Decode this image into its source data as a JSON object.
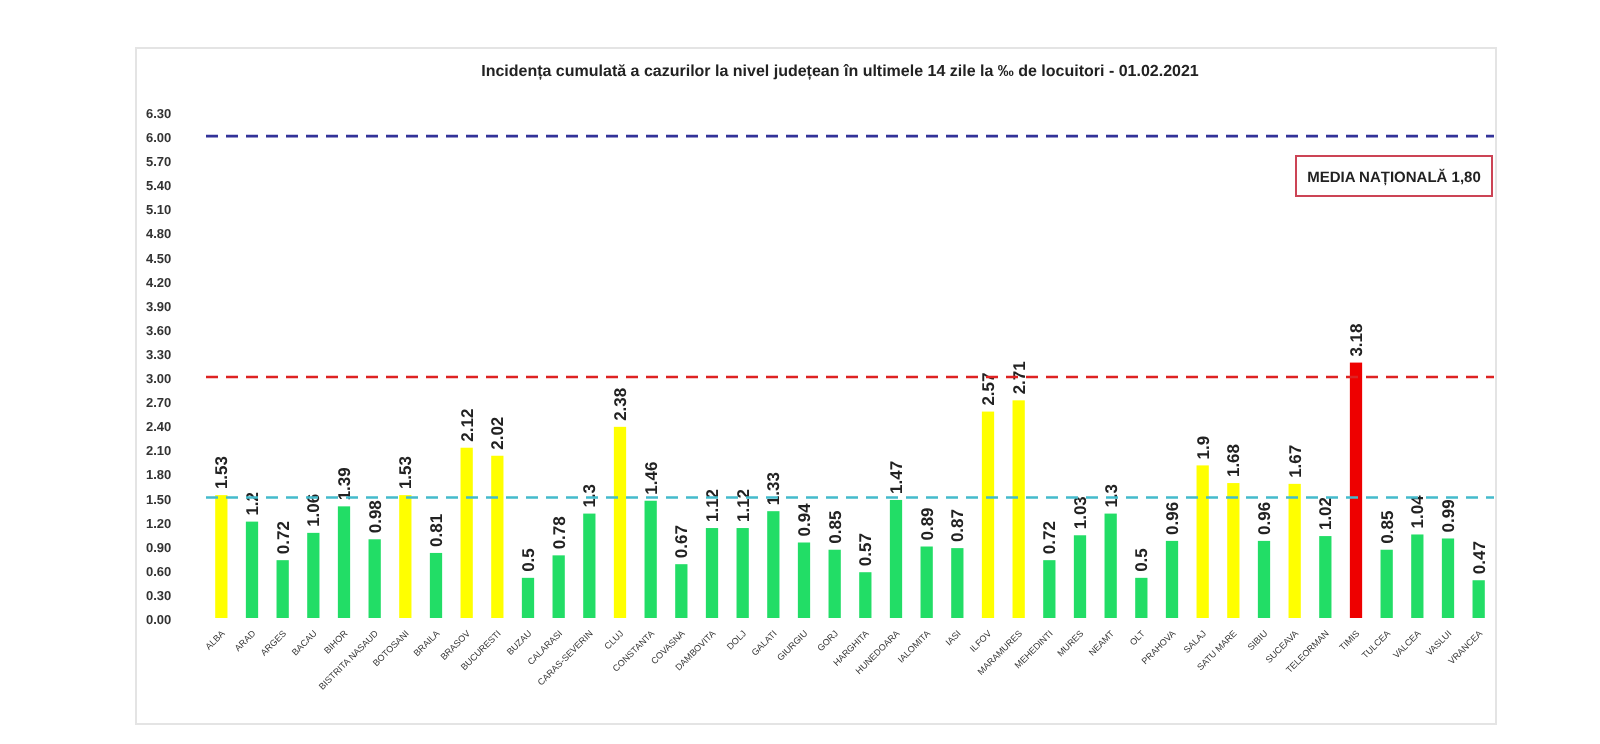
{
  "chart_data": {
    "type": "bar",
    "title": "Incidența cumulată a cazurilor la nivel județean în ultimele 14 zile la ‰ de locuitori - 01.02.2021",
    "categories": [
      "ALBA",
      "ARAD",
      "ARGES",
      "BACAU",
      "BIHOR",
      "BISTRITA NASAUD",
      "BOTOSANI",
      "BRAILA",
      "BRASOV",
      "BUCURESTI",
      "BUZAU",
      "CALARASI",
      "CARAS-SEVERIN",
      "CLUJ",
      "CONSTANTA",
      "COVASNA",
      "DAMBOVITA",
      "DOLJ",
      "GALATI",
      "GIURGIU",
      "GORJ",
      "HARGHITA",
      "HUNEDOARA",
      "IALOMITA",
      "IASI",
      "ILFOV",
      "MARAMURES",
      "MEHEDINTI",
      "MURES",
      "NEAMT",
      "OLT",
      "PRAHOVA",
      "SALAJ",
      "SATU MARE",
      "SIBIU",
      "SUCEAVA",
      "TELEORMAN",
      "TIMIS",
      "TULCEA",
      "VALCEA",
      "VASLUI",
      "VRANCEA"
    ],
    "values": [
      1.53,
      1.2,
      0.72,
      1.06,
      1.39,
      0.98,
      1.53,
      0.81,
      2.12,
      2.02,
      0.5,
      0.78,
      1.3,
      2.38,
      1.46,
      0.67,
      1.12,
      1.12,
      1.33,
      0.94,
      0.85,
      0.57,
      1.47,
      0.89,
      0.87,
      2.57,
      2.71,
      0.72,
      1.03,
      1.3,
      0.5,
      0.96,
      1.9,
      1.68,
      0.96,
      1.67,
      1.02,
      3.18,
      0.85,
      1.04,
      0.99,
      0.47
    ],
    "colors": [
      "#ffff00",
      "#22dd66",
      "#22dd66",
      "#22dd66",
      "#22dd66",
      "#22dd66",
      "#ffff00",
      "#22dd66",
      "#ffff00",
      "#ffff00",
      "#22dd66",
      "#22dd66",
      "#22dd66",
      "#ffff00",
      "#22dd66",
      "#22dd66",
      "#22dd66",
      "#22dd66",
      "#22dd66",
      "#22dd66",
      "#22dd66",
      "#22dd66",
      "#22dd66",
      "#22dd66",
      "#22dd66",
      "#ffff00",
      "#ffff00",
      "#22dd66",
      "#22dd66",
      "#22dd66",
      "#22dd66",
      "#22dd66",
      "#ffff00",
      "#ffff00",
      "#22dd66",
      "#ffff00",
      "#22dd66",
      "#ee0000",
      "#22dd66",
      "#22dd66",
      "#22dd66",
      "#22dd66"
    ],
    "ylim": [
      0,
      6.3
    ],
    "yticks": [
      {
        "value": 0,
        "label": "0.00"
      },
      {
        "value": 0.3,
        "label": "0.30"
      },
      {
        "value": 0.6,
        "label": "0.60"
      },
      {
        "value": 0.9,
        "label": "0.90"
      },
      {
        "value": 1.2,
        "label": "1.20"
      },
      {
        "value": 1.5,
        "label": "1.50"
      },
      {
        "value": 1.8,
        "label": "1.80"
      },
      {
        "value": 2.1,
        "label": "2.10"
      },
      {
        "value": 2.4,
        "label": "2.40"
      },
      {
        "value": 2.7,
        "label": "2.70"
      },
      {
        "value": 3,
        "label": "3.00"
      },
      {
        "value": 3.3,
        "label": "3.30"
      },
      {
        "value": 3.6,
        "label": "3.60"
      },
      {
        "value": 3.9,
        "label": "3.90"
      },
      {
        "value": 4.2,
        "label": "4.20"
      },
      {
        "value": 4.5,
        "label": "4.50"
      },
      {
        "value": 4.8,
        "label": "4.80"
      },
      {
        "value": 5.1,
        "label": "5.10"
      },
      {
        "value": 5.4,
        "label": "5.40"
      },
      {
        "value": 5.7,
        "label": "5.70"
      },
      {
        "value": 6,
        "label": "6.00"
      },
      {
        "value": 6.3,
        "label": "6.30"
      }
    ],
    "ref_lines": [
      {
        "axis": "y",
        "value": 6,
        "color": "#333399",
        "line_style": "dashed"
      },
      {
        "axis": "y",
        "value": 3,
        "color": "#dd2222",
        "line_style": "dashed"
      },
      {
        "axis": "y",
        "value": 1.5,
        "color": "#44bbcc",
        "line_style": "dashed"
      }
    ],
    "annotations": [
      "MEDIA NAȚIONALĂ 1,80"
    ],
    "data_labels": true
  }
}
